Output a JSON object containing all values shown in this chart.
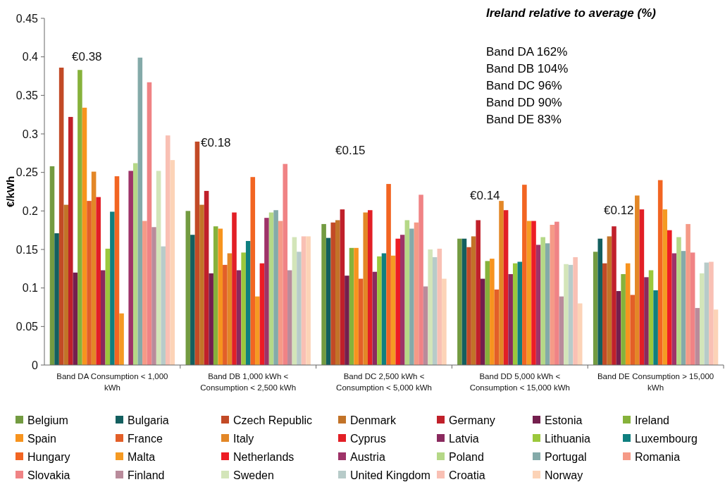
{
  "chart_data": {
    "type": "bar",
    "ylabel": "€/kWh",
    "categories": [
      "Band DA Consumption < 1,000 kWh",
      "Band DB 1,000 kWh < Consumption < 2,500 kWh",
      "Band DC 2,500 kWh < Consumption < 5,000 kWh",
      "Band DD 5,000 kWh < Consumption < 15,000 kWh",
      "Band DE Consumption > 15,000 kWh"
    ],
    "ylim": [
      0,
      0.45
    ],
    "yticks": [
      0,
      0.05,
      0.1,
      0.15,
      0.2,
      0.25,
      0.3,
      0.35,
      0.4,
      0.45
    ],
    "grid": false,
    "legend": "bottom",
    "series": [
      {
        "name": "Belgium",
        "color": "#739b41",
        "values": [
          0.258,
          0.2,
          0.183,
          0.164,
          0.147
        ]
      },
      {
        "name": "Bulgaria",
        "color": "#135f5f",
        "values": [
          0.171,
          0.169,
          0.165,
          0.164,
          0.164
        ]
      },
      {
        "name": "Czech Republic",
        "color": "#c24a26",
        "values": [
          0.386,
          0.29,
          0.185,
          0.153,
          0.132
        ]
      },
      {
        "name": "Denmark",
        "color": "#c27328",
        "values": [
          0.208,
          0.208,
          0.188,
          0.167,
          0.167
        ]
      },
      {
        "name": "Germany",
        "color": "#c0202a",
        "values": [
          0.322,
          0.226,
          0.202,
          0.188,
          0.18
        ]
      },
      {
        "name": "Estonia",
        "color": "#741f4e",
        "values": [
          0.12,
          0.119,
          0.116,
          0.112,
          0.096
        ]
      },
      {
        "name": "Ireland",
        "color": "#86b23b",
        "values": [
          0.383,
          0.18,
          0.152,
          0.135,
          0.118
        ]
      },
      {
        "name": "Spain",
        "color": "#f7941e",
        "values": [
          0.334,
          0.177,
          0.152,
          0.138,
          0.132
        ]
      },
      {
        "name": "France",
        "color": "#e35f28",
        "values": [
          0.213,
          0.13,
          0.112,
          0.098,
          0.091
        ]
      },
      {
        "name": "Italy",
        "color": "#e38727",
        "values": [
          0.251,
          0.145,
          0.198,
          0.213,
          0.22
        ]
      },
      {
        "name": "Cyprus",
        "color": "#e21f26",
        "values": [
          0.218,
          0.198,
          0.201,
          0.201,
          0.202
        ]
      },
      {
        "name": "Latvia",
        "color": "#8a2a5e",
        "values": [
          0.123,
          0.123,
          0.121,
          0.118,
          0.114
        ]
      },
      {
        "name": "Lithuania",
        "color": "#9bc83c",
        "values": [
          0.151,
          0.146,
          0.141,
          0.132,
          0.123
        ]
      },
      {
        "name": "Luxembourg",
        "color": "#0f7f7f",
        "values": [
          0.199,
          0.161,
          0.145,
          0.134,
          0.097
        ]
      },
      {
        "name": "Hungary",
        "color": "#f26522",
        "values": [
          0.245,
          0.244,
          0.235,
          0.234,
          0.24
        ]
      },
      {
        "name": "Malta",
        "color": "#f59a23",
        "values": [
          0.067,
          0.089,
          0.142,
          0.187,
          0.202
        ]
      },
      {
        "name": "Netherlands",
        "color": "#ed1c24",
        "values": [
          null,
          0.132,
          0.164,
          0.187,
          0.175
        ]
      },
      {
        "name": "Austria",
        "color": "#9e3368",
        "values": [
          0.252,
          0.191,
          0.169,
          0.156,
          0.145
        ]
      },
      {
        "name": "Poland",
        "color": "#b5d887",
        "values": [
          0.262,
          0.198,
          0.188,
          0.166,
          0.166
        ]
      },
      {
        "name": "Portugal",
        "color": "#84aaa9",
        "values": [
          0.399,
          0.201,
          0.177,
          0.158,
          0.148
        ]
      },
      {
        "name": "Romania",
        "color": "#f59a87",
        "values": [
          0.187,
          0.187,
          0.185,
          0.182,
          0.183
        ]
      },
      {
        "name": "Slovakia",
        "color": "#f08385",
        "values": [
          0.367,
          0.261,
          0.221,
          0.186,
          0.146
        ]
      },
      {
        "name": "Finland",
        "color": "#b98b9b",
        "values": [
          0.179,
          0.123,
          0.102,
          0.089,
          0.074
        ]
      },
      {
        "name": "Sweden",
        "color": "#d3e5b9",
        "values": [
          0.252,
          0.166,
          0.15,
          0.131,
          0.119
        ]
      },
      {
        "name": "United Kingdom",
        "color": "#b7cbc9",
        "values": [
          0.154,
          0.147,
          0.14,
          0.13,
          0.133
        ]
      },
      {
        "name": "Croatia",
        "color": "#f9c0b4",
        "values": [
          0.298,
          0.167,
          0.151,
          0.14,
          0.134
        ]
      },
      {
        "name": "Norway",
        "color": "#fcd3b7",
        "values": [
          0.266,
          0.167,
          0.112,
          0.08,
          0.072
        ]
      }
    ],
    "annotations": [
      "€0.38",
      "€0.18",
      "€0.15",
      "€0.14",
      "€0.12",
      "Ireland relative to average (%)",
      "Band DA 162%",
      "Band DB 104%",
      "Band DC 96%",
      "Band DD 90%",
      "Band DE 83%"
    ]
  }
}
